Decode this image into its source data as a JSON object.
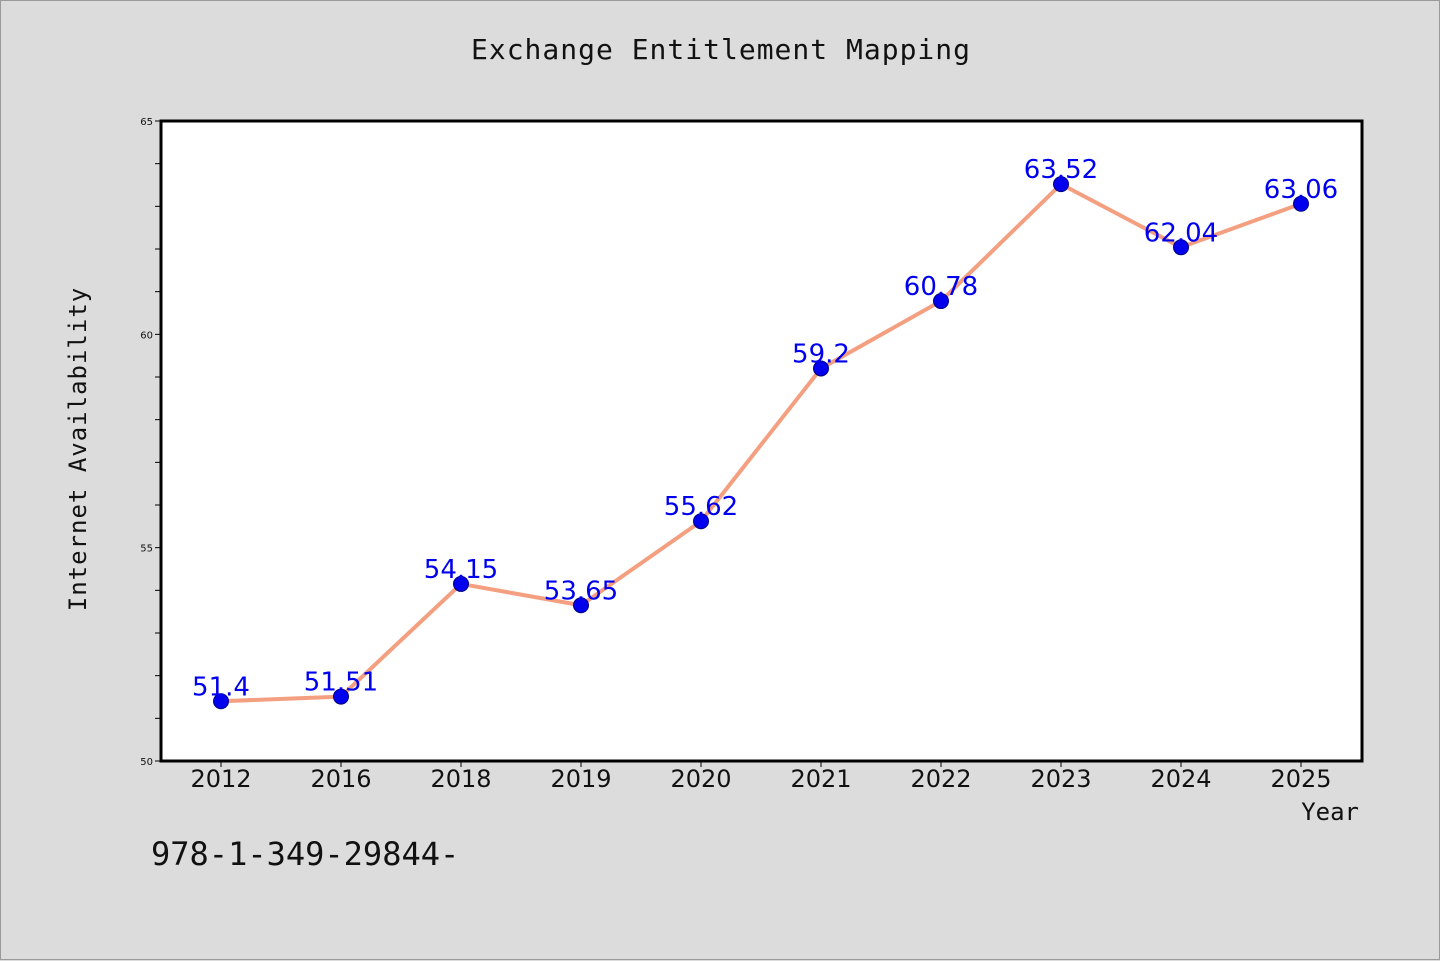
{
  "chart_data": {
    "type": "line",
    "title": "Exchange Entitlement Mapping",
    "xlabel": "Year",
    "ylabel": "Internet Availability",
    "categories": [
      "2012",
      "2016",
      "2018",
      "2019",
      "2020",
      "2021",
      "2022",
      "2023",
      "2024",
      "2025"
    ],
    "values": [
      51.4,
      51.51,
      54.15,
      53.65,
      55.62,
      59.2,
      60.78,
      63.52,
      62.04,
      63.06
    ],
    "data_labels": [
      "51.4",
      "51.51",
      "54.15",
      "53.65",
      "55.62",
      "59.2",
      "60.78",
      "63.52",
      "62.04",
      "63.06"
    ],
    "ylim": [
      50,
      65
    ],
    "yticks": [
      50,
      55,
      60,
      65
    ],
    "grid": false,
    "legend": "none",
    "colors": {
      "line": "#f4a080",
      "marker": "#0000ee",
      "label": "#0000ee",
      "background": "#dcdcdc",
      "plot_background": "#ffffff"
    }
  },
  "footer_text": "978-1-349-29844-"
}
